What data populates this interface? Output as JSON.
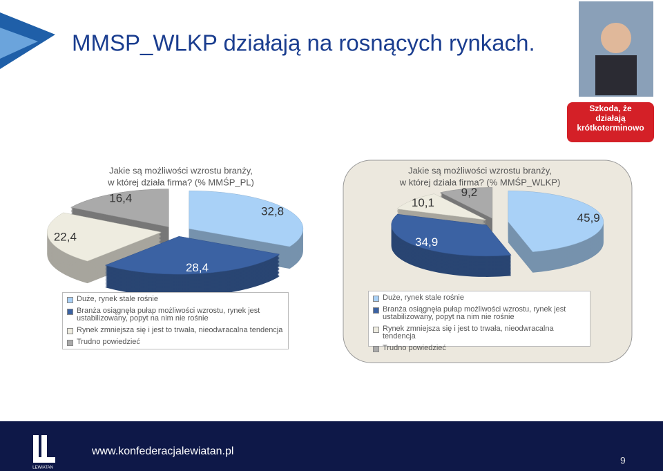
{
  "title": "MMSP_WLKP działają na rosnących rynkach.",
  "callout": [
    "Szkoda, że",
    "działają",
    "krótkoterminowo"
  ],
  "chart_data": [
    {
      "type": "pie",
      "title": [
        "Jakie są możliwości wzrostu branży,",
        "w której działa firma? (% MMŚP_PL)"
      ],
      "categories": [
        "Duże, rynek stale rośnie",
        "Branża osiągnęła pułap możliwości wzrostu, rynek jest ustabilizowany, popyt na nim nie rośnie",
        "Rynek zmniejsza się i jest to trwała, nieodwracalna tendencja",
        "Trudno powiedzieć"
      ],
      "values": [
        32.8,
        28.4,
        22.4,
        16.4
      ],
      "value_labels": [
        "32,8",
        "28,4",
        "22,4",
        "16,4"
      ],
      "colors": [
        "#a9d1f7",
        "#3b62a3",
        "#eeece0",
        "#aaaaaa"
      ]
    },
    {
      "type": "pie",
      "title": [
        "Jakie są możliwości wzrostu branży,",
        "w której działa firma? (% MMŚP_WLKP)"
      ],
      "categories": [
        "Duże, rynek stale rośnie",
        "Branża osiągnęła pułap możliwości wzrostu, rynek jest ustabilizowany, popyt na nim nie rośnie",
        "Rynek zmniejsza się i jest to trwała, nieodwracalna tendencja",
        "Trudno powiedzieć"
      ],
      "values": [
        45.9,
        34.9,
        10.1,
        9.2
      ],
      "value_labels": [
        "45,9",
        "34,9",
        "10,1",
        "9,2"
      ],
      "colors": [
        "#a9d1f7",
        "#3b62a3",
        "#eeece0",
        "#aaaaaa"
      ]
    }
  ],
  "footer": {
    "url": "www.konfederacjalewiatan.pl",
    "page": "9",
    "logo": "LEWIATAN"
  }
}
